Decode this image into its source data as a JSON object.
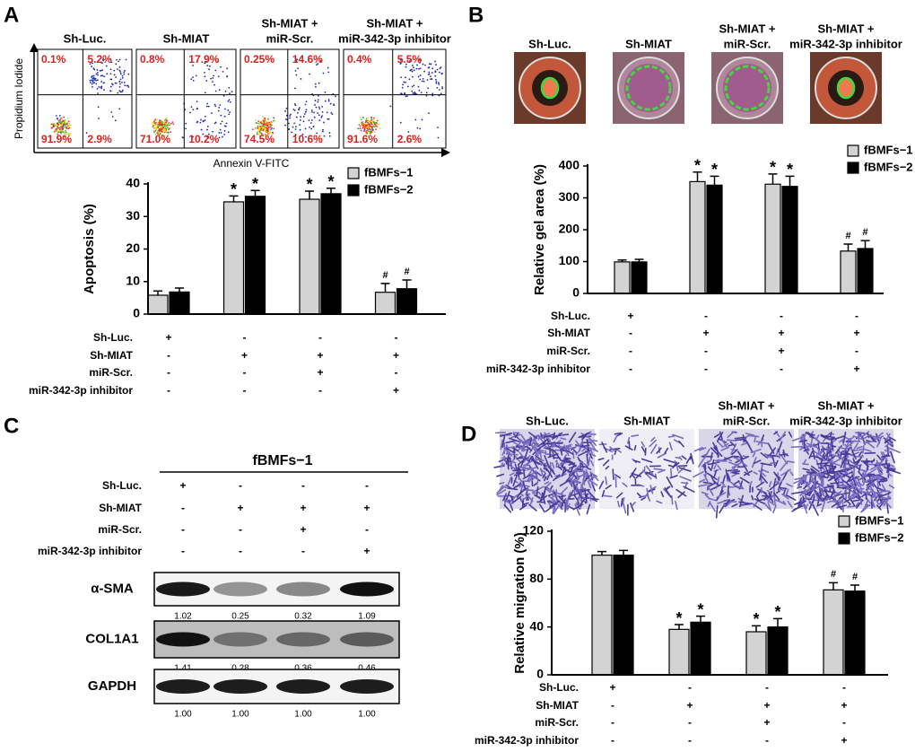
{
  "panels": [
    "A",
    "B",
    "C",
    "D"
  ],
  "flow": {
    "y_label": "Propidium Iodide",
    "x_label": "Annexin V-FITC",
    "plots": [
      {
        "title": [
          "Sh-Luc."
        ],
        "quadrants": [
          "0.1%",
          "5.2%",
          "91.9%",
          "2.9%"
        ]
      },
      {
        "title": [
          "Sh-MIAT"
        ],
        "quadrants": [
          "0.8%",
          "17.9%",
          "71.0%",
          "10.2%"
        ]
      },
      {
        "title": [
          "Sh-MIAT +",
          "miR-Scr."
        ],
        "quadrants": [
          "0.25%",
          "14.6%",
          "74.5%",
          "10.6%"
        ]
      },
      {
        "title": [
          "Sh-MIAT +",
          "miR-342-3p inhibitor"
        ],
        "quadrants": [
          "0.4%",
          "5.5%",
          "91.6%",
          "2.6%"
        ]
      }
    ]
  },
  "gel_images": {
    "titles": [
      [
        "Sh-Luc."
      ],
      [
        "Sh-MIAT"
      ],
      [
        "Sh-MIAT +",
        "miR-Scr."
      ],
      [
        "Sh-MIAT +",
        "miR-342-3p inhibitor"
      ]
    ]
  },
  "migration_images": {
    "titles": [
      [
        "Sh-Luc."
      ],
      [
        "Sh-MIAT"
      ],
      [
        "Sh-MIAT +",
        "miR-Scr."
      ],
      [
        "Sh-MIAT +",
        "miR-342-3p inhibitor"
      ]
    ]
  },
  "chart_data": [
    {
      "type": "bar",
      "y_label": "Apoptosis (%)",
      "ylim": [
        0,
        40
      ],
      "yticks": [
        0,
        10,
        20,
        30,
        40
      ],
      "series": [
        {
          "name": "fBMFs−1",
          "color": "#d3d3d3",
          "values": [
            5.8,
            34.5,
            35.3,
            6.7
          ],
          "errors": [
            1.3,
            1.8,
            2.5,
            2.7
          ],
          "markers": [
            null,
            "*",
            "*",
            "#"
          ]
        },
        {
          "name": "fBMFs−2",
          "color": "#000000",
          "values": [
            6.8,
            36.2,
            37.0,
            7.8
          ],
          "errors": [
            1.2,
            1.8,
            1.7,
            2.7
          ],
          "markers": [
            null,
            "*",
            "*",
            "#"
          ]
        }
      ],
      "conditions": [
        {
          "label": "Sh-Luc.",
          "signs": [
            "+",
            "-",
            "-",
            "-"
          ]
        },
        {
          "label": "Sh-MIAT",
          "signs": [
            "-",
            "+",
            "+",
            "+"
          ]
        },
        {
          "label": "miR-Scr.",
          "signs": [
            "-",
            "-",
            "+",
            "-"
          ]
        },
        {
          "label": "miR-342-3p inhibitor",
          "signs": [
            "-",
            "-",
            "-",
            "+"
          ]
        }
      ]
    },
    {
      "type": "bar",
      "y_label": "Relative gel area (%)",
      "ylim": [
        0,
        400
      ],
      "yticks": [
        0,
        100,
        200,
        300,
        400
      ],
      "series": [
        {
          "name": "fBMFs−1",
          "color": "#d3d3d3",
          "values": [
            99,
            351,
            343,
            133
          ],
          "errors": [
            6,
            30,
            32,
            22
          ],
          "markers": [
            null,
            "*",
            "*",
            "#"
          ]
        },
        {
          "name": "fBMFs−2",
          "color": "#000000",
          "values": [
            99,
            340,
            336,
            141
          ],
          "errors": [
            8,
            28,
            32,
            25
          ],
          "markers": [
            null,
            "*",
            "*",
            "#"
          ]
        }
      ],
      "conditions": [
        {
          "label": "Sh-Luc.",
          "signs": [
            "+",
            "-",
            "-",
            "-"
          ]
        },
        {
          "label": "Sh-MIAT",
          "signs": [
            "-",
            "+",
            "+",
            "+"
          ]
        },
        {
          "label": "miR-Scr.",
          "signs": [
            "-",
            "-",
            "+",
            "-"
          ]
        },
        {
          "label": "miR-342-3p inhibitor",
          "signs": [
            "-",
            "-",
            "-",
            "+"
          ]
        }
      ]
    },
    {
      "type": "bar",
      "y_label": "Relative migration (%)",
      "ylim": [
        0,
        120
      ],
      "yticks": [
        0,
        40,
        80,
        120
      ],
      "series": [
        {
          "name": "fBMFs−1",
          "color": "#d3d3d3",
          "values": [
            100,
            38,
            36,
            71
          ],
          "errors": [
            3,
            4,
            5,
            6
          ],
          "markers": [
            null,
            "*",
            "*",
            "#"
          ]
        },
        {
          "name": "fBMFs−2",
          "color": "#000000",
          "values": [
            100,
            44,
            40,
            70
          ],
          "errors": [
            4,
            5,
            7,
            5
          ],
          "markers": [
            null,
            "*",
            "*",
            "#"
          ]
        }
      ],
      "conditions": [
        {
          "label": "Sh-Luc.",
          "signs": [
            "+",
            "-",
            "-",
            "-"
          ]
        },
        {
          "label": "Sh-MIAT",
          "signs": [
            "-",
            "+",
            "+",
            "+"
          ]
        },
        {
          "label": "miR-Scr.",
          "signs": [
            "-",
            "-",
            "+",
            "-"
          ]
        },
        {
          "label": "miR-342-3p inhibitor",
          "signs": [
            "-",
            "-",
            "-",
            "+"
          ]
        }
      ]
    }
  ],
  "blot": {
    "title": "fBMFs−1",
    "conditions": [
      {
        "label": "Sh-Luc.",
        "signs": [
          "+",
          "-",
          "-",
          "-"
        ]
      },
      {
        "label": "Sh-MIAT",
        "signs": [
          "-",
          "+",
          "+",
          "+"
        ]
      },
      {
        "label": "miR-Scr.",
        "signs": [
          "-",
          "-",
          "+",
          "-"
        ]
      },
      {
        "label": "miR-342-3p inhibitor",
        "signs": [
          "-",
          "-",
          "-",
          "+"
        ]
      }
    ],
    "proteins": [
      {
        "name": "α-SMA",
        "values": [
          "1.02",
          "0.25",
          "0.32",
          "1.09"
        ]
      },
      {
        "name": "COL1A1",
        "values": [
          "1.41",
          "0.28",
          "0.36",
          "0.46"
        ]
      },
      {
        "name": "GAPDH",
        "values": [
          "1.00",
          "1.00",
          "1.00",
          "1.00"
        ]
      }
    ]
  }
}
